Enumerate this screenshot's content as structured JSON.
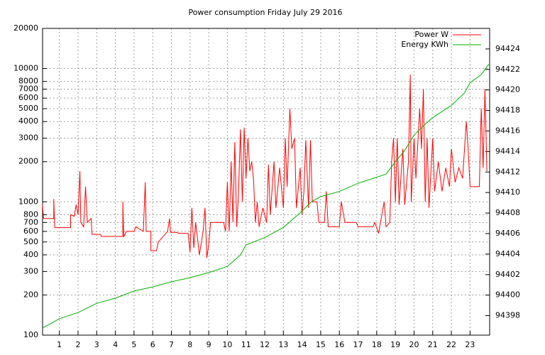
{
  "chart_data": {
    "type": "line",
    "title": "Power consumption Friday July 29 2016",
    "log_y": true,
    "grid": true,
    "legend": "top-right",
    "xlim": [
      0.1,
      24.05
    ],
    "xticks": [
      1,
      2,
      3,
      4,
      5,
      6,
      7,
      8,
      9,
      10,
      11,
      12,
      13,
      14,
      15,
      16,
      17,
      18,
      19,
      20,
      21,
      22,
      23
    ],
    "ylim": [
      100,
      20000
    ],
    "yticks": [
      100,
      200,
      300,
      400,
      500,
      600,
      700,
      800,
      1000,
      2000,
      3000,
      4000,
      5000,
      6000,
      7000,
      8000,
      10000,
      20000
    ],
    "y2lim": [
      94396.1,
      94426
    ],
    "y2ticks": [
      94398,
      94400,
      94402,
      94404,
      94406,
      94408,
      94410,
      94412,
      94414,
      94416,
      94418,
      94420,
      94422,
      94424
    ],
    "series": [
      {
        "name": "Power W",
        "color": "#ff0000",
        "x": [
          0.1,
          0.15,
          0.7,
          0.7,
          0.75,
          1.6,
          1.6,
          1.8,
          1.9,
          2.0,
          2.1,
          2.15,
          2.3,
          2.4,
          2.5,
          2.7,
          2.75,
          3.2,
          3.25,
          4.4,
          4.4,
          4.45,
          4.6,
          5.0,
          5.1,
          5.5,
          5.6,
          5.65,
          5.9,
          5.9,
          6.2,
          6.3,
          6.8,
          6.9,
          6.95,
          7.3,
          7.4,
          7.9,
          8.0,
          8.1,
          8.2,
          8.3,
          8.5,
          8.7,
          8.8,
          8.9,
          9.0,
          9.1,
          9.8,
          9.9,
          10.0,
          10.1,
          10.2,
          10.3,
          10.4,
          10.5,
          10.6,
          10.7,
          10.8,
          10.9,
          11.0,
          11.1,
          11.2,
          11.3,
          11.4,
          11.5,
          11.6,
          11.7,
          11.9,
          12.1,
          12.2,
          12.3,
          12.5,
          12.6,
          12.8,
          13.0,
          13.1,
          13.2,
          13.35,
          13.45,
          13.6,
          13.7,
          13.9,
          14.0,
          14.1,
          14.2,
          14.35,
          14.45,
          14.55,
          14.8,
          14.9,
          15.2,
          15.3,
          15.4,
          16.0,
          16.1,
          16.3,
          16.9,
          17.0,
          17.8,
          17.9,
          18.1,
          18.2,
          18.4,
          18.5,
          18.7,
          18.8,
          18.9,
          19.0,
          19.1,
          19.2,
          19.4,
          19.5,
          19.7,
          19.8,
          19.85,
          20.0,
          20.1,
          20.3,
          20.4,
          20.5,
          20.6,
          20.7,
          20.8,
          21.0,
          21.1,
          21.3,
          21.5,
          21.7,
          21.9,
          22.0,
          22.2,
          22.4,
          22.6,
          22.8,
          22.9,
          23.0,
          23.5,
          23.6,
          23.7,
          23.8,
          23.9
        ],
        "values": [
          950,
          750,
          750,
          1050,
          640,
          640,
          800,
          780,
          950,
          800,
          1700,
          700,
          650,
          1300,
          700,
          750,
          570,
          570,
          550,
          550,
          1000,
          550,
          600,
          600,
          650,
          600,
          1400,
          600,
          600,
          430,
          430,
          500,
          600,
          750,
          590,
          590,
          580,
          580,
          420,
          900,
          450,
          700,
          400,
          600,
          900,
          380,
          480,
          700,
          700,
          600,
          1400,
          600,
          2000,
          700,
          2800,
          650,
          1200,
          3500,
          1000,
          3600,
          1500,
          3000,
          1700,
          2000,
          1500,
          700,
          1000,
          650,
          900,
          700,
          1900,
          800,
          2000,
          900,
          1800,
          900,
          3000,
          1300,
          5000,
          2500,
          3000,
          900,
          1800,
          800,
          1200,
          2900,
          900,
          2900,
          1000,
          1000,
          700,
          700,
          1200,
          650,
          650,
          1000,
          700,
          700,
          650,
          650,
          700,
          580,
          700,
          1000,
          650,
          700,
          2000,
          3000,
          1000,
          3000,
          950,
          2500,
          950,
          2000,
          9000,
          1000,
          3000,
          1500,
          5000,
          2500,
          7000,
          1000,
          3000,
          900,
          3000,
          1200,
          2000,
          1200,
          1800,
          1300,
          2500,
          1400,
          1800,
          1500,
          4000,
          2500,
          1300,
          1300,
          5000,
          1800,
          7000,
          1700
        ]
      },
      {
        "name": "Energy KWh",
        "color": "#00b000",
        "axis": "y2",
        "x": [
          0.1,
          1,
          2,
          3,
          4,
          5,
          6,
          7,
          8,
          9,
          10,
          10.7,
          11,
          12,
          13,
          13.7,
          14,
          14.5,
          15,
          16,
          17,
          18.5,
          19,
          19.5,
          20,
          20.5,
          21,
          22,
          22.7,
          23,
          23.6,
          24
        ],
        "values": [
          94396.8,
          94397.7,
          94398.3,
          94399.2,
          94399.7,
          94400.4,
          94400.8,
          94401.3,
          94401.7,
          94402.2,
          94402.8,
          94403.9,
          94404.9,
          94405.6,
          94406.6,
          94407.7,
          94408.2,
          94409.1,
          94409.6,
          94410.1,
          94410.9,
          94411.8,
          94413.0,
          94414.1,
          94415.6,
          94416.5,
          94417.3,
          94418.5,
          94419.7,
          94420.7,
          94421.5,
          94422.5
        ]
      }
    ]
  }
}
